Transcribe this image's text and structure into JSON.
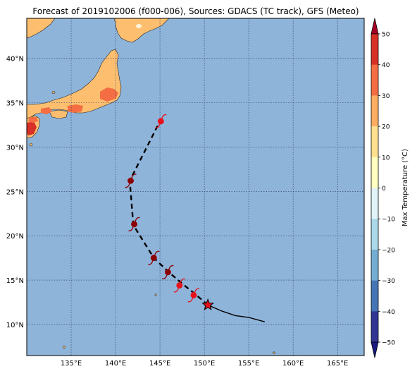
{
  "title": "Forecast of 2019102006 (f000-006), Sources: GDACS (TC track), GFS (Meteo)",
  "map": {
    "lon_range": [
      130,
      168
    ],
    "lat_range": [
      6.5,
      44.5
    ],
    "lon_ticks": [
      135,
      140,
      145,
      150,
      155,
      160,
      165
    ],
    "lat_ticks": [
      10,
      15,
      20,
      25,
      30,
      35,
      40
    ],
    "lon_tick_labels": [
      "135°E",
      "140°E",
      "145°E",
      "150°E",
      "155°E",
      "160°E",
      "165°E"
    ],
    "lat_tick_labels": [
      "10°N",
      "15°N",
      "20°N",
      "25°N",
      "30°N",
      "35°N",
      "40°N"
    ],
    "ocean_color": "#8fb4d9",
    "land_color": "#fdbf6f",
    "warm_land_color": "#f46d43",
    "hot_land_color": "#d73027",
    "grid": "on, dotted"
  },
  "track": {
    "past": [
      [
        156.8,
        10.3
      ],
      [
        155,
        10.8
      ],
      [
        153.5,
        11.0
      ],
      [
        152,
        11.5
      ],
      [
        150.4,
        12.2
      ]
    ],
    "forecast": [
      [
        150.4,
        12.2
      ],
      [
        149,
        13.4
      ],
      [
        147.5,
        14.6
      ],
      [
        146,
        15.9
      ],
      [
        144.3,
        17.5
      ],
      [
        142,
        21.2
      ],
      [
        141.6,
        26.2
      ],
      [
        145,
        32.9
      ]
    ],
    "current_position": [
      150.4,
      12.2
    ],
    "storm_markers": [
      {
        "lon": 148.8,
        "lat": 13.3,
        "color": "#e8111a"
      },
      {
        "lon": 147.2,
        "lat": 14.4,
        "color": "#e8111a"
      },
      {
        "lon": 145.9,
        "lat": 15.9,
        "color": "#8b0000"
      },
      {
        "lon": 144.3,
        "lat": 17.5,
        "color": "#8b0000"
      },
      {
        "lon": 142.1,
        "lat": 21.3,
        "color": "#8b0000"
      },
      {
        "lon": 141.7,
        "lat": 26.2,
        "color": "#8b0000"
      },
      {
        "lon": 145.1,
        "lat": 32.9,
        "color": "#e8111a"
      }
    ]
  },
  "colorbar": {
    "label": "Max Temperature (°C)",
    "ticks": [
      50,
      40,
      30,
      20,
      10,
      0,
      -10,
      -20,
      -30,
      -40,
      -50
    ],
    "tick_labels": [
      "50",
      "40",
      "30",
      "20",
      "10",
      "0",
      "−10",
      "−20",
      "−30",
      "−40",
      "−50"
    ],
    "colors": [
      "#a50026",
      "#d73027",
      "#f46d43",
      "#fdae61",
      "#fee090",
      "#ffffbf",
      "#e0f3f8",
      "#abd9e9",
      "#74add1",
      "#4575b4",
      "#313695",
      "#1a1a80"
    ],
    "extend": "both"
  }
}
